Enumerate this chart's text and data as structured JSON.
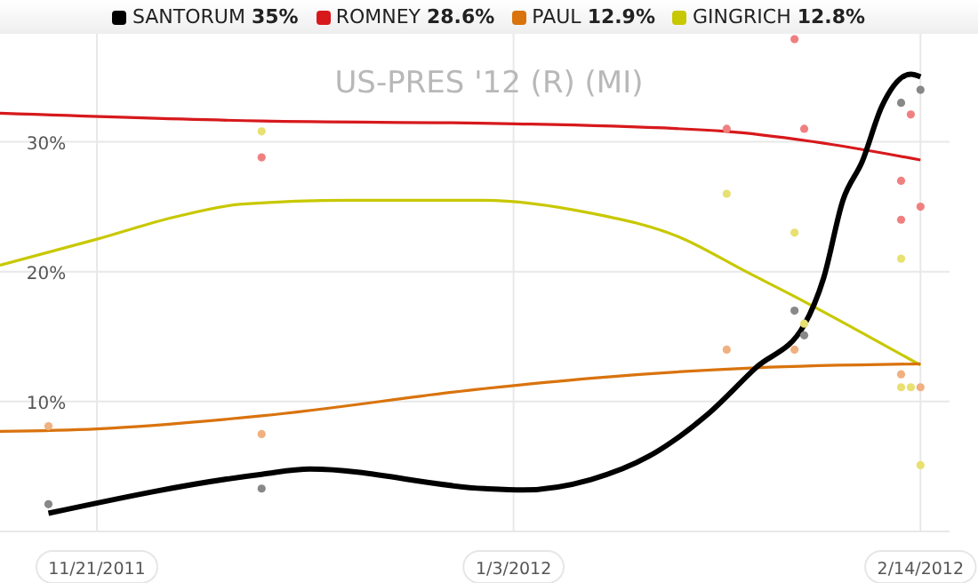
{
  "chart_data": {
    "type": "line",
    "title": "US-PRES '12 (R) (MI)",
    "legend": "top",
    "grid": true,
    "xlim": [
      "2011-11-11",
      "2012-02-17"
    ],
    "ylim": [
      0,
      39
    ],
    "xticks": [
      {
        "value": "2011-11-21",
        "label": "11/21/2011"
      },
      {
        "value": "2012-01-03",
        "label": "1/3/2012"
      },
      {
        "value": "2012-02-14",
        "label": "2/14/2012"
      }
    ],
    "yticks": [
      {
        "value": 10,
        "label": "10%"
      },
      {
        "value": 20,
        "label": "20%"
      },
      {
        "value": 30,
        "label": "30%"
      }
    ],
    "series": [
      {
        "type": "scatter",
        "color": "#888888",
        "x": [
          "2011-11-16",
          "2011-12-08",
          "2012-02-01",
          "2012-02-02",
          "2012-02-12",
          "2012-02-14"
        ],
        "values": [
          2.1,
          3.3,
          17,
          15.1,
          33,
          34
        ]
      },
      {
        "type": "scatter",
        "color": "#f08080",
        "x": [
          "2011-12-08",
          "2012-01-25",
          "2012-02-01",
          "2012-02-02",
          "2012-02-12",
          "2012-02-12",
          "2012-02-13",
          "2012-02-14"
        ],
        "values": [
          28.8,
          31,
          37.9,
          31,
          27,
          24,
          32.1,
          25
        ]
      },
      {
        "type": "scatter",
        "color": "#f0b080",
        "x": [
          "2011-11-16",
          "2011-12-08",
          "2012-01-25",
          "2012-02-01",
          "2012-02-12",
          "2012-02-14"
        ],
        "values": [
          8.1,
          7.5,
          14,
          14,
          12.1,
          11.1
        ]
      },
      {
        "type": "scatter",
        "color": "#e8e070",
        "x": [
          "2011-12-08",
          "2012-01-25",
          "2012-02-01",
          "2012-02-02",
          "2012-02-12",
          "2012-02-12",
          "2012-02-13",
          "2012-02-14"
        ],
        "values": [
          30.8,
          26,
          23,
          16,
          21,
          11.1,
          11.1,
          5.1
        ]
      },
      {
        "name": "SANTORUM 35%",
        "color": "#000000",
        "x": [
          "2011-11-16",
          "2011-12-08",
          "2011-12-13",
          "2011-12-31",
          "2012-01-04",
          "2012-01-11",
          "2012-01-17",
          "2012-01-23",
          "2012-01-28",
          "2012-02-02",
          "2012-02-04",
          "2012-02-06",
          "2012-02-08",
          "2012-02-10",
          "2012-02-13",
          "2012-02-14"
        ],
        "values": [
          1.4,
          4.4,
          4.8,
          3.3,
          3.2,
          4,
          5.8,
          9,
          12.6,
          15.9,
          19.5,
          25.5,
          28.5,
          32.7,
          35.2,
          35
        ]
      },
      {
        "name": "ROMNEY 28.6%",
        "color": "#d7191c",
        "x": [
          "2011-11-11",
          "2011-12-08",
          "2012-01-02",
          "2012-01-25",
          "2012-02-03",
          "2012-02-14"
        ],
        "values": [
          32.2,
          31.6,
          31.4,
          30.8,
          30,
          28.6
        ]
      },
      {
        "name": "PAUL 12.9%",
        "color": "#d9730d",
        "x": [
          "2011-11-11",
          "2011-11-21",
          "2011-12-08",
          "2011-12-31",
          "2012-01-11",
          "2012-01-28",
          "2012-02-14"
        ],
        "values": [
          7.7,
          7.9,
          8.9,
          11,
          11.8,
          12.6,
          12.9
        ]
      },
      {
        "name": "GINGRICH 12.8%",
        "color": "#c8c800",
        "x": [
          "2011-11-11",
          "2011-11-21",
          "2011-11-29",
          "2011-12-06",
          "2011-12-17",
          "2011-12-31",
          "2012-01-11",
          "2012-01-20",
          "2012-01-27",
          "2012-02-02",
          "2012-02-14"
        ],
        "values": [
          20.5,
          22.5,
          24.2,
          25.2,
          25.5,
          25.5,
          24.5,
          22.7,
          20,
          17.7,
          12.8
        ]
      }
    ]
  }
}
